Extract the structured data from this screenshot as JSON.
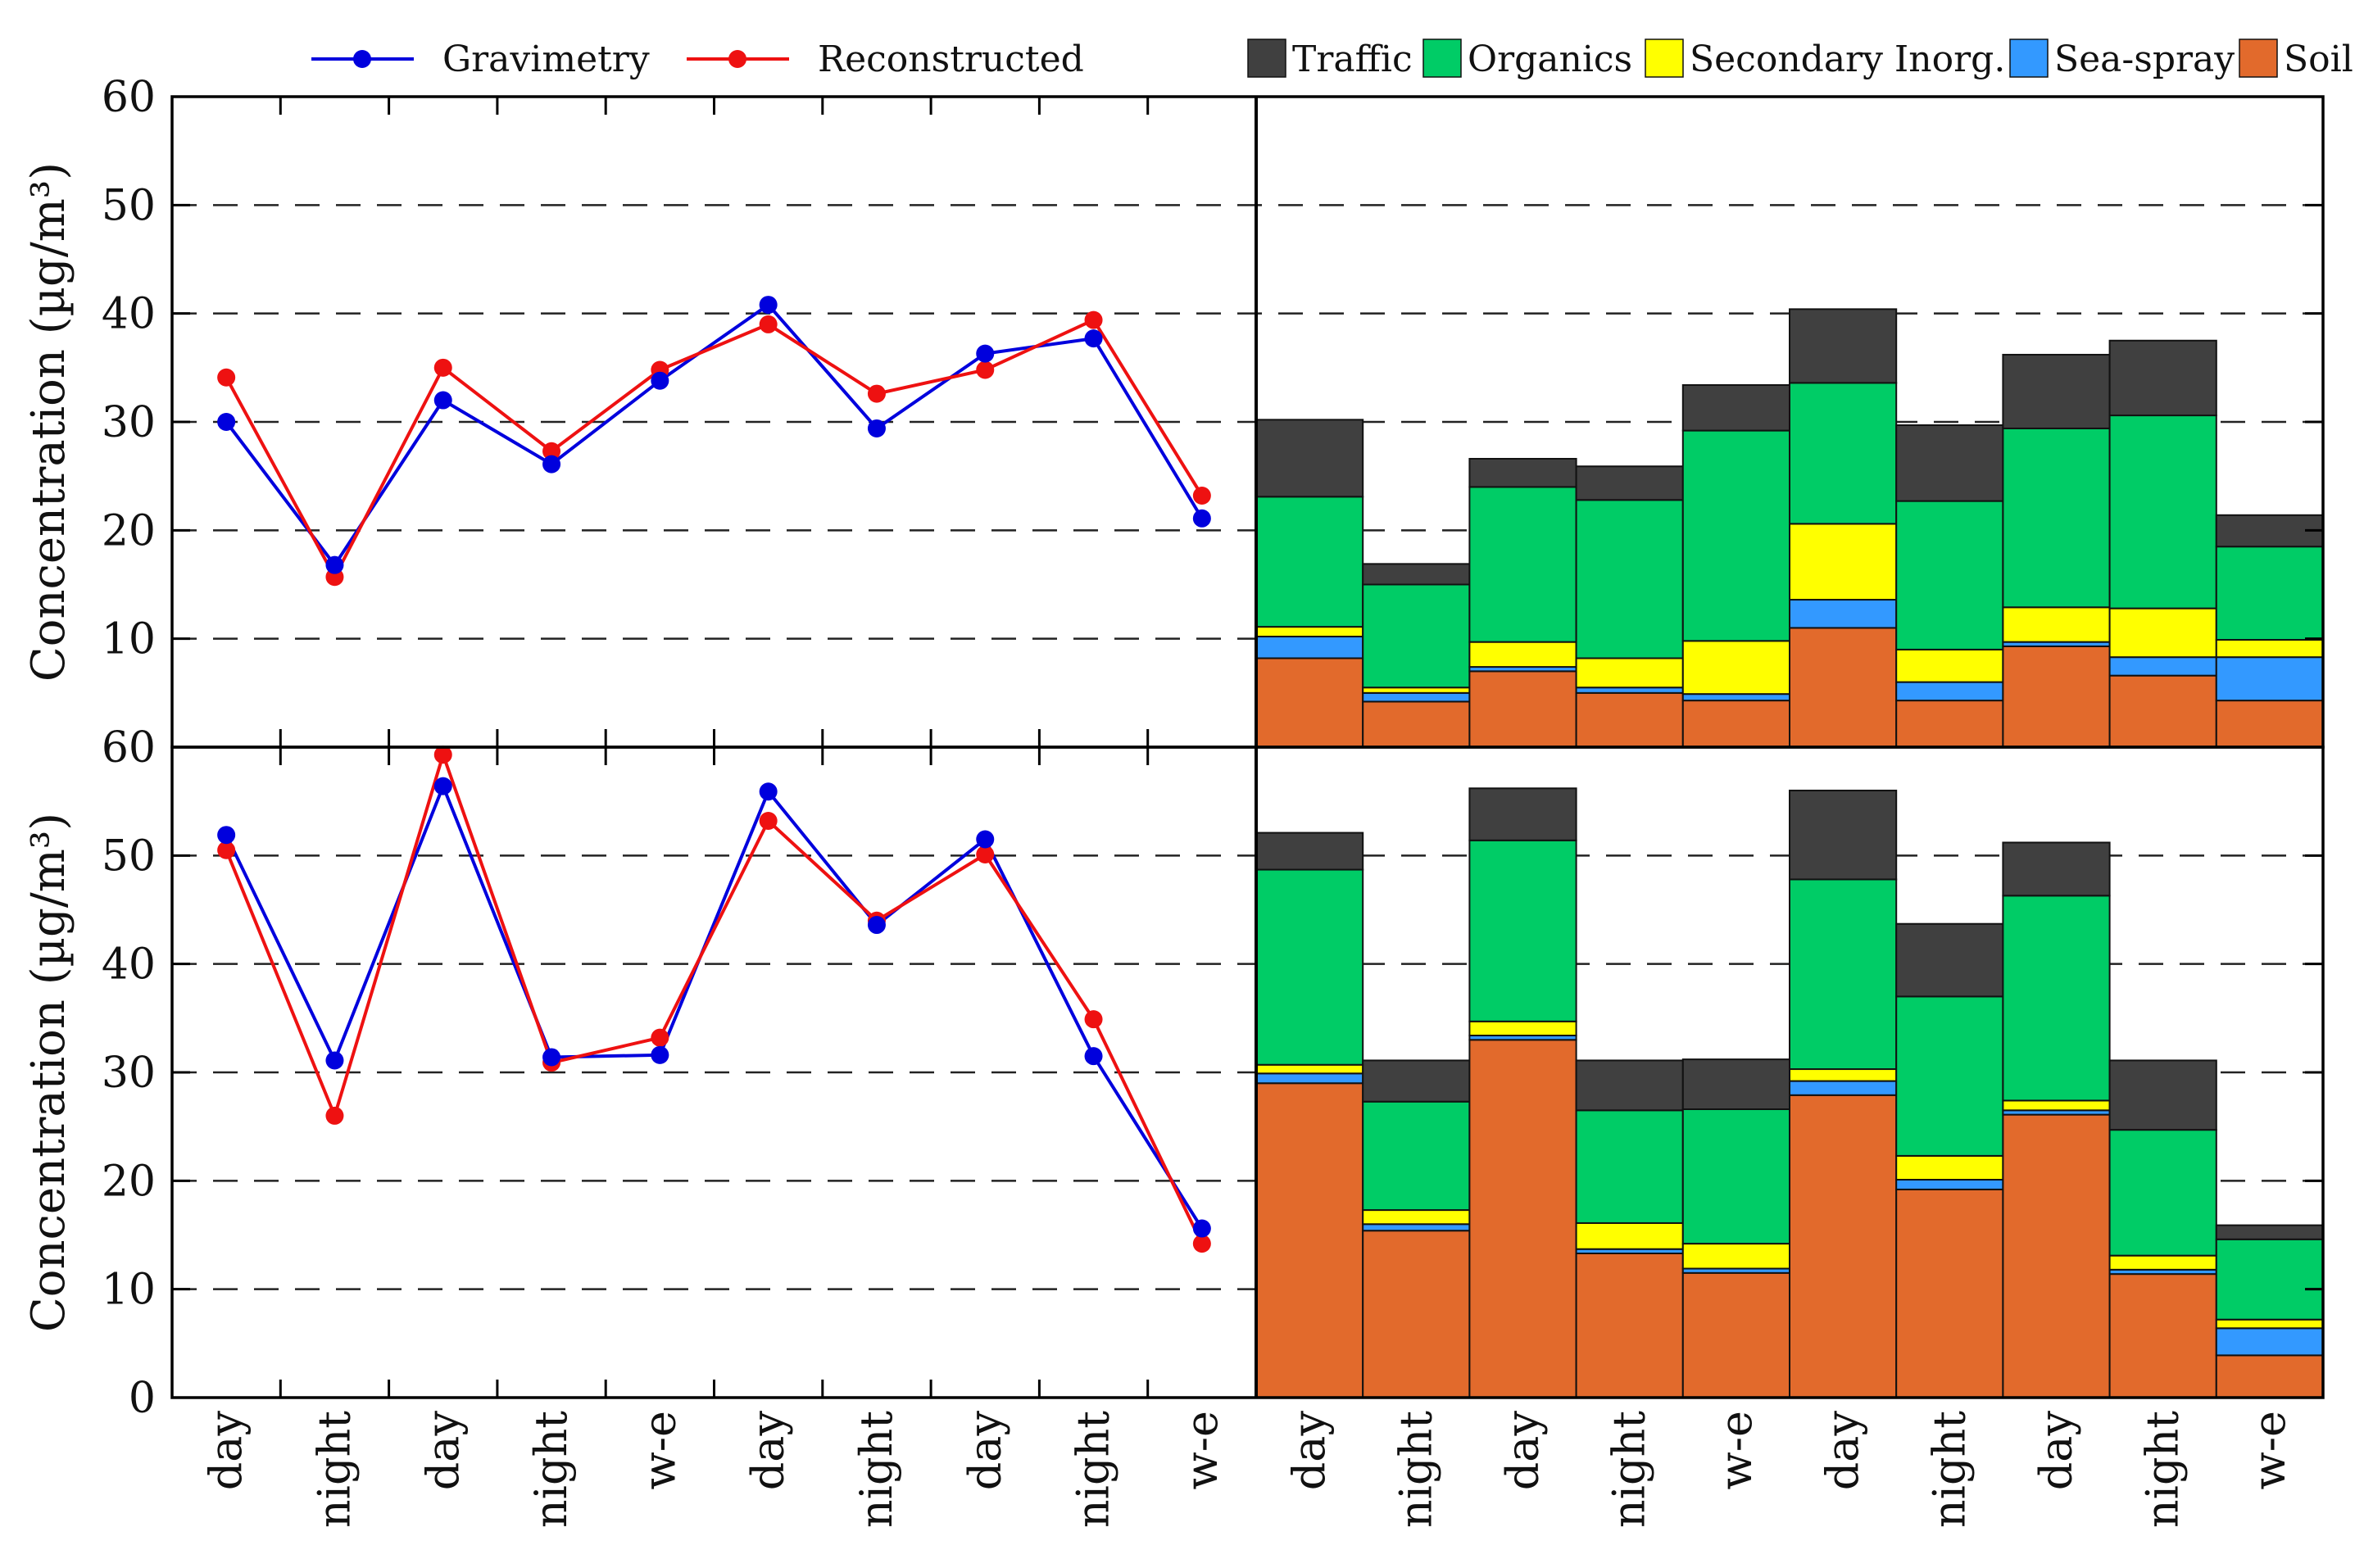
{
  "chart_data": {
    "type": "line+stacked-bar",
    "ylabel": "Concentration (µg/m³)",
    "ylim": [
      0,
      60
    ],
    "yticks": [
      "0",
      "10",
      "20",
      "30",
      "40",
      "50",
      "60"
    ],
    "categories": [
      "day",
      "night",
      "day",
      "night",
      "w-e",
      "day",
      "night",
      "day",
      "night",
      "w-e"
    ],
    "line_legend": [
      {
        "name": "Gravimetry",
        "color": "#0000dd"
      },
      {
        "name": "Reconstructed",
        "color": "#ee1111"
      }
    ],
    "bar_legend": [
      {
        "name": "Traffic",
        "color": "#404040"
      },
      {
        "name": "Organics",
        "color": "#00cc66"
      },
      {
        "name": "Secondary Inorg.",
        "color": "#ffff00"
      },
      {
        "name": "Sea-spray",
        "color": "#3399ff"
      },
      {
        "name": "Soil",
        "color": "#e26a2c"
      }
    ],
    "panels": [
      {
        "name": "top",
        "lines": {
          "Gravimetry": [
            30.0,
            16.8,
            32.0,
            26.1,
            33.8,
            40.8,
            29.4,
            36.3,
            37.7,
            21.1
          ],
          "Reconstructed": [
            34.1,
            15.7,
            35.0,
            27.3,
            34.8,
            39.0,
            32.6,
            34.8,
            39.4,
            23.2
          ]
        },
        "bars": {
          "Soil": [
            8.2,
            4.2,
            7.0,
            5.0,
            4.3,
            11.0,
            4.3,
            9.3,
            6.6,
            4.3
          ],
          "Sea-spray": [
            2.0,
            0.8,
            0.4,
            0.5,
            0.6,
            2.6,
            1.7,
            0.4,
            1.7,
            4.0
          ],
          "Secondary Inorg.": [
            0.9,
            0.5,
            2.3,
            2.7,
            4.9,
            7.0,
            3.0,
            3.2,
            4.5,
            1.6
          ],
          "Organics": [
            12.0,
            9.5,
            14.3,
            14.6,
            19.4,
            13.0,
            13.7,
            16.5,
            17.8,
            8.6
          ],
          "Traffic": [
            7.1,
            1.9,
            2.6,
            3.1,
            4.2,
            6.8,
            7.0,
            6.8,
            6.9,
            2.9
          ]
        }
      },
      {
        "name": "bottom",
        "lines": {
          "Gravimetry": [
            51.9,
            31.1,
            56.4,
            31.4,
            31.6,
            55.9,
            43.6,
            51.5,
            31.5,
            15.6
          ],
          "Reconstructed": [
            50.5,
            26.0,
            59.3,
            30.9,
            33.2,
            53.2,
            44.0,
            50.1,
            34.9,
            14.2
          ]
        },
        "bars": {
          "Soil": [
            29.0,
            15.4,
            33.0,
            13.3,
            11.5,
            27.9,
            19.2,
            26.1,
            11.4,
            3.9
          ],
          "Sea-spray": [
            0.9,
            0.6,
            0.4,
            0.4,
            0.4,
            1.3,
            0.9,
            0.4,
            0.4,
            2.5
          ],
          "Secondary Inorg.": [
            0.8,
            1.3,
            1.3,
            2.4,
            2.3,
            1.1,
            2.2,
            0.9,
            1.3,
            0.8
          ],
          "Organics": [
            18.0,
            10.0,
            16.7,
            10.4,
            12.4,
            17.5,
            14.7,
            18.9,
            11.6,
            7.4
          ],
          "Traffic": [
            3.4,
            3.8,
            4.8,
            4.6,
            4.6,
            8.2,
            6.7,
            4.9,
            6.4,
            1.3
          ]
        }
      }
    ]
  }
}
